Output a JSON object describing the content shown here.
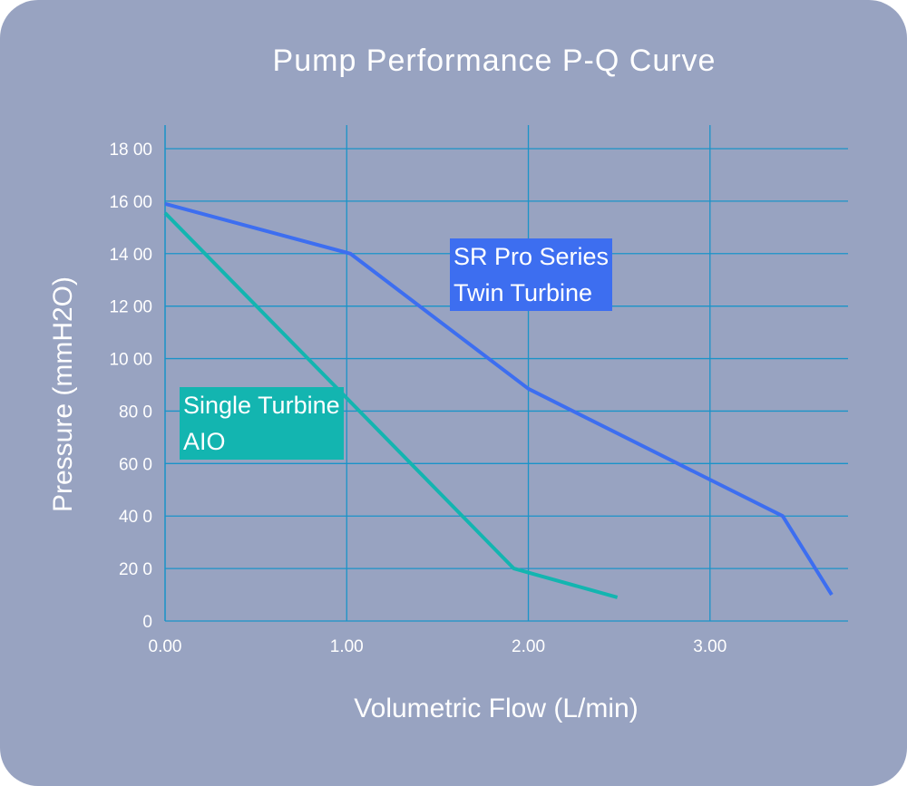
{
  "chart_data": {
    "type": "line",
    "title": "Pump Performance P-Q Curve",
    "xlabel": "Volumetric Flow (L/min)",
    "ylabel": "Pressure (mmH2O)",
    "xlim": [
      0,
      3.76
    ],
    "ylim": [
      0,
      1800
    ],
    "grid": true,
    "x_ticks": [
      0,
      1,
      2,
      3
    ],
    "x_tick_labels": [
      "0.00",
      "1.00",
      "2.00",
      "3.00"
    ],
    "y_ticks": [
      0,
      200,
      400,
      600,
      800,
      1000,
      1200,
      1400,
      1600,
      1800
    ],
    "y_tick_labels": [
      "0",
      "20 0",
      "40 0",
      "60 0",
      "80 0",
      "10 00",
      "12 00",
      "14 00",
      "16 00",
      "18 00"
    ],
    "series": [
      {
        "name": "SR Pro Series Twin Turbine",
        "label_lines": [
          "SR Pro Series",
          "Twin Turbine"
        ],
        "color": "#3d6ef0",
        "x": [
          0,
          1.02,
          2.0,
          3.4,
          3.67
        ],
        "y": [
          1590,
          1400,
          885,
          400,
          100
        ]
      },
      {
        "name": "Single Turbine AIO",
        "label_lines": [
          "Single Turbine",
          "AIO"
        ],
        "color": "#13b5b0",
        "x": [
          0,
          1.92,
          2.49
        ],
        "y": [
          1555,
          200,
          90
        ]
      }
    ],
    "colors": {
      "background": "#98a3c1",
      "grid": "#1a93c8",
      "text": "#ffffff"
    }
  }
}
